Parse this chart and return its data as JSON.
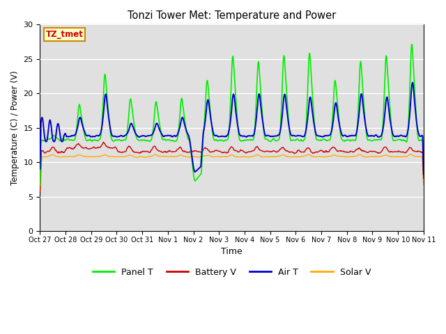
{
  "title": "Tonzi Tower Met: Temperature and Power",
  "xlabel": "Time",
  "ylabel": "Temperature (C) / Power (V)",
  "ylim": [
    0,
    30
  ],
  "yticks": [
    0,
    5,
    10,
    15,
    20,
    25,
    30
  ],
  "bg_color": "#e0e0e0",
  "fig_color": "#ffffff",
  "annotation_label": "TZ_tmet",
  "annotation_box_color": "#ffffcc",
  "annotation_border_color": "#cc8800",
  "legend_entries": [
    "Panel T",
    "Battery V",
    "Air T",
    "Solar V"
  ],
  "legend_colors": [
    "#00ee00",
    "#cc0000",
    "#0000cc",
    "#ffaa00"
  ],
  "line_colors": {
    "panel_t": "#00ee00",
    "battery_v": "#cc0000",
    "air_t": "#0000cc",
    "solar_v": "#ffaa00"
  },
  "x_tick_labels": [
    "Oct 27",
    "Oct 28",
    "Oct 29",
    "Oct 30",
    "Oct 31",
    "Nov 1",
    "Nov 2",
    "Nov 3",
    "Nov 4",
    "Nov 5",
    "Nov 6",
    "Nov 7",
    "Nov 8",
    "Nov 9",
    "Nov 10",
    "Nov 11"
  ],
  "n_points": 800
}
